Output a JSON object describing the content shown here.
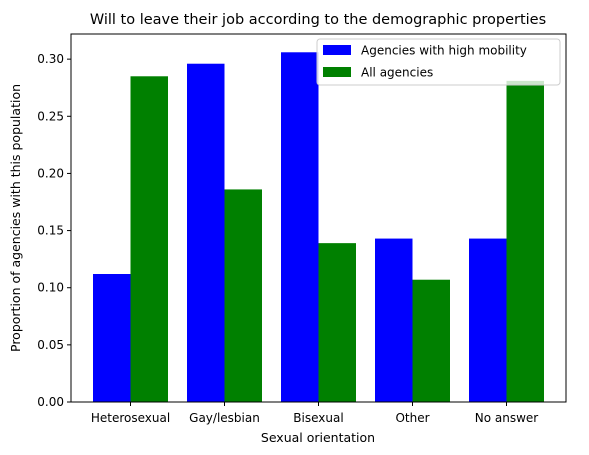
{
  "chart_data": {
    "type": "bar",
    "title": "Will to leave their job according to the demographic properties",
    "xlabel": "Sexual orientation",
    "ylabel": "Proportion of agencies with this population",
    "categories": [
      "Heterosexual",
      "Gay/lesbian",
      "Bisexual",
      "Other",
      "No answer"
    ],
    "series": [
      {
        "name": "Agencies with high mobility",
        "color": "#0000ff",
        "values": [
          0.112,
          0.296,
          0.306,
          0.143,
          0.143
        ]
      },
      {
        "name": "All agencies",
        "color": "#008000",
        "values": [
          0.285,
          0.186,
          0.139,
          0.107,
          0.281
        ]
      }
    ],
    "ylim": [
      0,
      0.322
    ],
    "yticks": [
      0.0,
      0.05,
      0.1,
      0.15,
      0.2,
      0.25,
      0.3
    ],
    "ytick_labels": [
      "0.00",
      "0.05",
      "0.10",
      "0.15",
      "0.20",
      "0.25",
      "0.30"
    ],
    "grid": false,
    "legend_position": "top-right"
  }
}
